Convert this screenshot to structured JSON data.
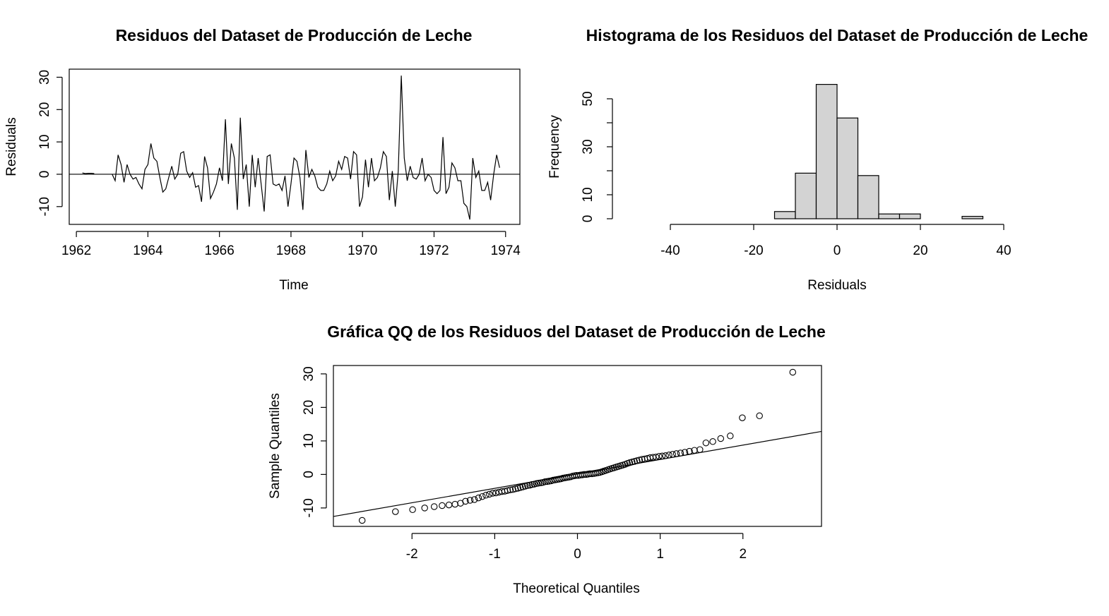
{
  "chart_data": [
    {
      "type": "line",
      "title": "Residuos del Dataset de Producción de Leche",
      "xlabel": "Time",
      "ylabel": "Residuals",
      "xlim": [
        1961.8,
        1974.4
      ],
      "ylim": [
        -15.5,
        32.5
      ],
      "xticks": [
        1962,
        1964,
        1966,
        1968,
        1970,
        1972,
        1974
      ],
      "yticks": [
        -10,
        0,
        10,
        20,
        30
      ],
      "hline": 0,
      "start": 1962.0,
      "frequency": 12,
      "values": [
        null,
        null,
        0.4,
        0.2,
        0.3,
        0.3,
        0.2,
        null,
        null,
        null,
        null,
        null,
        0.0,
        -2.0,
        6.0,
        3.0,
        -2.5,
        3.0,
        0.0,
        -1.5,
        -1.0,
        -3.0,
        -4.5,
        1.5,
        3.0,
        9.5,
        5.0,
        4.0,
        -1.0,
        -5.5,
        -4.5,
        -1.0,
        2.5,
        -1.5,
        0.0,
        6.5,
        7.0,
        1.0,
        -1.0,
        0.5,
        -4.0,
        -3.5,
        -8.5,
        5.5,
        2.0,
        -7.5,
        -5.5,
        -3.0,
        2.0,
        -2.0,
        17.0,
        -3.0,
        9.5,
        5.0,
        -11.0,
        17.5,
        -1.5,
        3.0,
        -10.0,
        6.0,
        -4.0,
        5.0,
        -3.0,
        -11.5,
        5.5,
        6.0,
        -3.0,
        -3.5,
        -3.0,
        -5.0,
        -0.5,
        -10.0,
        -3.0,
        5.0,
        4.0,
        -1.0,
        -11.0,
        7.5,
        -1.0,
        1.5,
        -0.5,
        -4.0,
        -5.0,
        -5.0,
        -3.0,
        1.0,
        -2.0,
        -0.5,
        4.0,
        1.5,
        5.5,
        5.0,
        -1.5,
        7.0,
        6.0,
        -10.0,
        -7.0,
        4.5,
        -4.0,
        5.0,
        -2.0,
        -1.0,
        2.0,
        7.0,
        5.5,
        -8.0,
        1.0,
        -10.0,
        1.0,
        30.5,
        5.0,
        -2.0,
        2.5,
        -1.0,
        -1.5,
        0.0,
        5.0,
        -2.0,
        0.0,
        -1.0,
        -5.0,
        -6.0,
        -5.0,
        11.5,
        -6.0,
        -4.0,
        3.5,
        2.0,
        -2.0,
        -2.0,
        -9.0,
        -10.0,
        -14.0,
        5.0,
        -1.0,
        1.0,
        -5.0,
        -5.0,
        -2.5,
        -8.0,
        0.0,
        6.0,
        2.0
      ]
    },
    {
      "type": "bar",
      "title": "Histograma de los Residuos del Dataset de Producción de Leche",
      "xlabel": "Residuals",
      "ylabel": "Frequency",
      "xlim": [
        -40,
        40
      ],
      "ylim": [
        0,
        60
      ],
      "xticks": [
        -40,
        -20,
        0,
        20,
        40
      ],
      "yticks": [
        0,
        10,
        30,
        50
      ],
      "bins": [
        [
          -15,
          -10
        ],
        [
          -10,
          -5
        ],
        [
          -5,
          0
        ],
        [
          0,
          5
        ],
        [
          5,
          10
        ],
        [
          10,
          15
        ],
        [
          15,
          20
        ],
        [
          20,
          25
        ],
        [
          25,
          30
        ],
        [
          30,
          35
        ]
      ],
      "values": [
        3,
        19,
        56,
        42,
        18,
        2,
        2,
        0,
        0,
        1
      ],
      "bar_color": "#d3d3d3"
    },
    {
      "type": "scatter",
      "title": "Gráfica QQ de los Residuos del Dataset de Producción de Leche",
      "xlabel": "Theoretical Quantiles",
      "ylabel": "Sample Quantiles",
      "xlim": [
        -2.95,
        2.95
      ],
      "ylim": [
        -15.5,
        32.5
      ],
      "xticks": [
        -2,
        -1,
        0,
        1,
        2
      ],
      "yticks": [
        -10,
        0,
        10,
        20,
        30
      ],
      "line": {
        "intercept": 0.15,
        "slope": 4.3
      },
      "sorted_values": [
        -13.7,
        -11.1,
        -10.5,
        -10.0,
        -9.6,
        -9.3,
        -9.1,
        -8.9,
        -8.6,
        -8.0,
        -7.7,
        -7.5,
        -7.0,
        -6.6,
        -6.2,
        -5.9,
        -5.6,
        -5.5,
        -5.3,
        -5.1,
        -5.0,
        -4.8,
        -4.6,
        -4.5,
        -4.3,
        -4.1,
        -3.9,
        -3.7,
        -3.5,
        -3.3,
        -3.2,
        -3.0,
        -2.9,
        -2.7,
        -2.6,
        -2.5,
        -2.4,
        -2.2,
        -2.1,
        -2.0,
        -1.9,
        -1.7,
        -1.6,
        -1.5,
        -1.4,
        -1.3,
        -1.1,
        -1.0,
        -0.9,
        -0.8,
        -0.7,
        -0.5,
        -0.4,
        -0.3,
        -0.3,
        -0.2,
        -0.1,
        0.0,
        0.0,
        0.1,
        0.2,
        0.2,
        0.3,
        0.4,
        0.5,
        0.6,
        0.8,
        1.0,
        1.2,
        1.4,
        1.6,
        1.8,
        2.0,
        2.2,
        2.4,
        2.6,
        2.8,
        3.0,
        3.3,
        3.5,
        3.7,
        3.9,
        4.1,
        4.3,
        4.5,
        4.6,
        4.8,
        5.0,
        5.1,
        5.2,
        5.4,
        5.5,
        5.6,
        5.8,
        6.0,
        6.2,
        6.4,
        6.6,
        6.9,
        7.2,
        7.4,
        9.4,
        9.8,
        10.7,
        11.5,
        16.9,
        17.5,
        30.5
      ]
    }
  ]
}
